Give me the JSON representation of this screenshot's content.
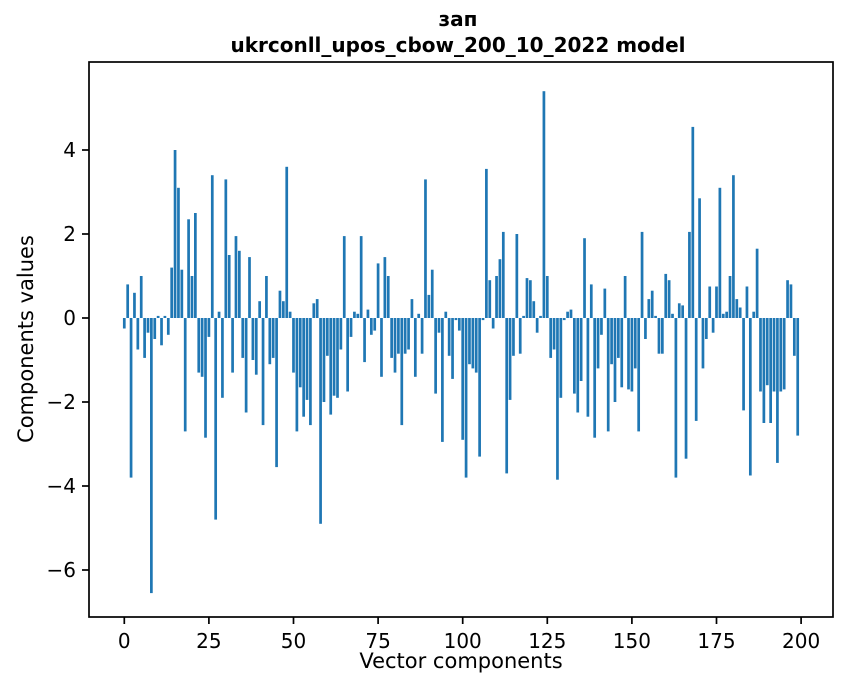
{
  "title": {
    "line1": "зап",
    "line2": "ukrconll_upos_cbow_200_10_2022 model"
  },
  "axes": {
    "xlabel": "Vector components",
    "ylabel": "Components values"
  },
  "chart_data": {
    "type": "bar",
    "title": "зап\nukrconll_upos_cbow_200_10_2022 model",
    "xlabel": "Vector components",
    "ylabel": "Components values",
    "x_start": 0,
    "categories_note": "x = vector component index 0..199",
    "values": [
      -0.25,
      0.8,
      -3.8,
      0.6,
      -0.75,
      1.0,
      -0.95,
      -0.35,
      -6.55,
      -0.5,
      0.05,
      -0.65,
      0.05,
      -0.4,
      1.2,
      4.0,
      3.1,
      1.15,
      -2.7,
      2.35,
      1.0,
      2.5,
      -1.3,
      -1.4,
      -2.85,
      -0.45,
      3.4,
      -4.8,
      0.15,
      -1.9,
      3.3,
      1.5,
      -1.3,
      1.95,
      1.6,
      -0.95,
      -2.25,
      1.45,
      -1.0,
      -1.35,
      0.4,
      -2.55,
      1.0,
      -1.1,
      -0.95,
      -3.55,
      0.65,
      0.4,
      3.6,
      0.15,
      -1.3,
      -2.7,
      -1.65,
      -2.35,
      -1.95,
      -2.55,
      0.35,
      0.45,
      -4.9,
      -2.0,
      -0.9,
      -2.3,
      -1.85,
      -1.9,
      -0.75,
      1.95,
      -1.75,
      -0.45,
      0.15,
      0.1,
      1.95,
      -1.05,
      0.2,
      -0.4,
      -0.3,
      1.3,
      -1.4,
      1.45,
      1.0,
      -0.95,
      -1.3,
      -0.85,
      -2.55,
      -0.85,
      -0.75,
      0.45,
      -1.4,
      0.1,
      -0.85,
      3.3,
      0.55,
      1.15,
      -1.8,
      -0.35,
      -2.95,
      0.15,
      -0.9,
      -1.45,
      -0.05,
      -0.3,
      -2.9,
      -3.8,
      -1.1,
      -1.2,
      -1.3,
      -3.3,
      -0.05,
      3.55,
      0.9,
      -0.25,
      1.0,
      1.4,
      2.05,
      -3.7,
      -1.95,
      -0.9,
      2.0,
      -0.85,
      0.05,
      0.95,
      0.9,
      0.4,
      -0.35,
      0.05,
      5.4,
      1.0,
      -0.95,
      -0.75,
      -3.85,
      -1.9,
      -0.05,
      0.15,
      0.2,
      -1.8,
      -2.25,
      -1.5,
      1.9,
      -2.35,
      0.8,
      -2.85,
      -1.2,
      -0.4,
      0.7,
      -2.7,
      -1.1,
      -2.0,
      -0.95,
      -1.65,
      1.0,
      -1.7,
      -1.75,
      -1.2,
      -2.7,
      2.05,
      -0.5,
      0.45,
      0.65,
      0.05,
      -0.85,
      -0.85,
      1.05,
      0.9,
      0.1,
      -3.8,
      0.35,
      0.3,
      -3.35,
      2.05,
      4.55,
      -2.45,
      2.85,
      -1.2,
      -0.5,
      0.75,
      -0.35,
      0.75,
      3.1,
      0.1,
      0.15,
      1.0,
      3.4,
      0.45,
      0.25,
      -2.2,
      0.75,
      -3.75,
      0.15,
      1.65,
      -1.75,
      -2.5,
      -1.6,
      -2.5,
      -1.75,
      -3.45,
      -1.75,
      -1.7,
      0.9,
      0.8,
      -0.9,
      -2.8
    ],
    "bar_color": "#1f77b4",
    "xticks": [
      0,
      25,
      50,
      75,
      100,
      125,
      150,
      175,
      200
    ],
    "yticks": [
      -6,
      -4,
      -2,
      0,
      2,
      4
    ],
    "xlim": [
      -10.4,
      209.4
    ],
    "ylim": [
      -7.1,
      6.1
    ],
    "grid": false,
    "legend": null,
    "spine_color": "#000000"
  }
}
